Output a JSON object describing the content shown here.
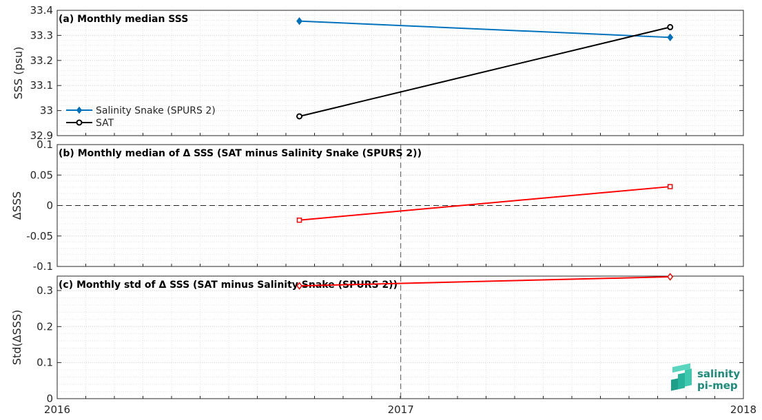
{
  "chart_data": [
    {
      "type": "line",
      "title": "(a) Monthly median SSS",
      "ylabel": "SSS (psu)",
      "xlim": [
        "2016",
        "2018"
      ],
      "ylim": [
        32.9,
        33.4
      ],
      "x_ticks": [
        "2016",
        "2017",
        "2018"
      ],
      "y_ticks": [
        "32.9",
        "33",
        "33.1",
        "33.2",
        "33.3",
        "33.4"
      ],
      "grid": true,
      "legend_position": "left",
      "series": [
        {
          "name": "Salinity Snake (SPURS 2)",
          "color": "#0072bd",
          "marker": "diamond",
          "x": [
            "2016-09-15",
            "2017-10-15"
          ],
          "y": [
            33.357,
            33.292
          ]
        },
        {
          "name": "SAT",
          "color": "#000000",
          "marker": "circle",
          "x": [
            "2016-09-15",
            "2017-10-15"
          ],
          "y": [
            32.977,
            33.333
          ]
        }
      ]
    },
    {
      "type": "line",
      "title": "(b) Monthly median of Δ SSS (SAT minus Salinity Snake (SPURS 2))",
      "ylabel": "ΔSSS",
      "xlim": [
        "2016",
        "2018"
      ],
      "ylim": [
        -0.1,
        0.1
      ],
      "y_ticks": [
        "-0.1",
        "-0.05",
        "0",
        "0.05",
        "0.1"
      ],
      "grid": true,
      "series": [
        {
          "color": "#ff0000",
          "marker": "square",
          "x": [
            "2016-09-15",
            "2017-10-15"
          ],
          "y": [
            -0.024,
            0.031
          ]
        }
      ]
    },
    {
      "type": "line",
      "title": "(c) Monthly std of Δ SSS (SAT minus Salinity Snake (SPURS 2))",
      "ylabel": "Std(ΔSSS)",
      "xlim": [
        "2016",
        "2018"
      ],
      "ylim": [
        0,
        0.34
      ],
      "y_ticks": [
        "0",
        "0.1",
        "0.2",
        "0.3"
      ],
      "x_ticks": [
        "2016",
        "2017",
        "2018"
      ],
      "grid": true,
      "series": [
        {
          "color": "#ff0000",
          "marker": "diamond",
          "x": [
            "2016-09-15",
            "2017-10-15"
          ],
          "y": [
            0.313,
            0.338
          ]
        }
      ]
    }
  ],
  "logo": {
    "line1": "salinity",
    "line2": "pi-mep",
    "color": "#1a8c7a"
  }
}
